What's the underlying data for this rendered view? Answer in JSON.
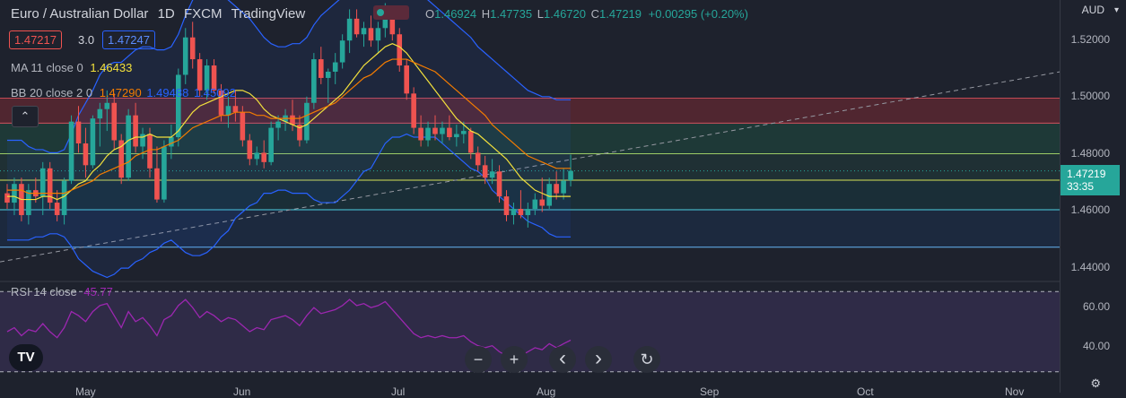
{
  "header": {
    "symbol": "Euro / Australian Dollar",
    "interval": "1D",
    "source": "FXCM",
    "platform": "TradingView",
    "o_label": "O",
    "o_value": "1.46924",
    "h_label": "H",
    "h_value": "1.47735",
    "l_label": "L",
    "l_value": "1.46720",
    "c_label": "C",
    "c_value": "1.47219",
    "change": "+0.00295 (+0.20%)"
  },
  "order": {
    "sell": "1.47217",
    "spread": "3.0",
    "buy": "1.47247"
  },
  "ma": {
    "label": "MA 11 close 0",
    "value": "1.46433"
  },
  "bb": {
    "label": "BB 20 close 2 0",
    "basis": "1.47290",
    "upper": "1.49488",
    "lower": "1.45092"
  },
  "rsi": {
    "label": "RSI 14 close",
    "value": "45.77"
  },
  "axis": {
    "currency": "AUD",
    "price_ticks": [
      "1.52000",
      "1.50000",
      "1.48000",
      "1.46000",
      "1.44000"
    ],
    "rsi_ticks": [
      "60.00",
      "40.00"
    ],
    "months": [
      "May",
      "Jun",
      "Jul",
      "Aug",
      "Sep",
      "Oct",
      "Nov"
    ],
    "price_tag": "1.47219",
    "countdown": "33:35"
  },
  "controls": {
    "zoom_out": "−",
    "zoom_in": "+",
    "prev": "‹",
    "next": "›",
    "reset": "↻"
  },
  "logo": "TV",
  "colors": {
    "up": "#26a69a",
    "down": "#ef5350",
    "ma": "#f2e03c",
    "bb_basis": "#f57c00",
    "bb_band": "#2962ff",
    "rsi": "#9c27b0"
  },
  "chart_data": {
    "type": "candlestick",
    "title": "Euro / Australian Dollar",
    "interval": "1D",
    "x_axis": [
      "May",
      "Jun",
      "Jul",
      "Aug",
      "Sep",
      "Oct",
      "Nov"
    ],
    "y_axis": {
      "label": "AUD",
      "range": [
        1.437,
        1.527
      ],
      "ticks": [
        1.52,
        1.5,
        1.48,
        1.46,
        1.44
      ]
    },
    "candles_ohlc": [
      [
        1.465,
        1.468,
        1.46,
        1.462
      ],
      [
        1.462,
        1.47,
        1.458,
        1.468
      ],
      [
        1.468,
        1.47,
        1.456,
        1.458
      ],
      [
        1.458,
        1.468,
        1.455,
        1.466
      ],
      [
        1.466,
        1.47,
        1.462,
        1.464
      ],
      [
        1.464,
        1.475,
        1.458,
        1.473
      ],
      [
        1.473,
        1.475,
        1.46,
        1.462
      ],
      [
        1.462,
        1.466,
        1.456,
        1.458
      ],
      [
        1.458,
        1.47,
        1.455,
        1.469
      ],
      [
        1.469,
        1.49,
        1.468,
        1.488
      ],
      [
        1.488,
        1.493,
        1.478,
        1.481
      ],
      [
        1.481,
        1.486,
        1.47,
        1.474
      ],
      [
        1.474,
        1.49,
        1.473,
        1.489
      ],
      [
        1.489,
        1.494,
        1.48,
        1.492
      ],
      [
        1.492,
        1.498,
        1.485,
        1.494
      ],
      [
        1.494,
        1.497,
        1.479,
        1.482
      ],
      [
        1.482,
        1.484,
        1.468,
        1.47
      ],
      [
        1.47,
        1.492,
        1.469,
        1.49
      ],
      [
        1.49,
        1.494,
        1.478,
        1.48
      ],
      [
        1.48,
        1.486,
        1.476,
        1.484
      ],
      [
        1.484,
        1.486,
        1.47,
        1.473
      ],
      [
        1.473,
        1.48,
        1.462,
        1.463
      ],
      [
        1.463,
        1.482,
        1.462,
        1.48
      ],
      [
        1.48,
        1.487,
        1.476,
        1.483
      ],
      [
        1.483,
        1.505,
        1.48,
        1.503
      ],
      [
        1.503,
        1.518,
        1.5,
        1.515
      ],
      [
        1.515,
        1.52,
        1.505,
        1.508
      ],
      [
        1.508,
        1.51,
        1.496,
        1.498
      ],
      [
        1.498,
        1.508,
        1.495,
        1.506
      ],
      [
        1.506,
        1.508,
        1.497,
        1.498
      ],
      [
        1.498,
        1.5,
        1.488,
        1.49
      ],
      [
        1.49,
        1.496,
        1.486,
        1.493
      ],
      [
        1.493,
        1.498,
        1.488,
        1.491
      ],
      [
        1.491,
        1.493,
        1.48,
        1.482
      ],
      [
        1.482,
        1.484,
        1.474,
        1.476
      ],
      [
        1.476,
        1.48,
        1.474,
        1.478
      ],
      [
        1.478,
        1.482,
        1.473,
        1.475
      ],
      [
        1.475,
        1.488,
        1.474,
        1.486
      ],
      [
        1.486,
        1.49,
        1.482,
        1.488
      ],
      [
        1.488,
        1.492,
        1.485,
        1.49
      ],
      [
        1.49,
        1.495,
        1.485,
        1.487
      ],
      [
        1.487,
        1.49,
        1.48,
        1.482
      ],
      [
        1.482,
        1.496,
        1.481,
        1.494
      ],
      [
        1.494,
        1.51,
        1.492,
        1.508
      ],
      [
        1.508,
        1.512,
        1.5,
        1.502
      ],
      [
        1.502,
        1.505,
        1.494,
        1.504
      ],
      [
        1.504,
        1.51,
        1.5,
        1.507
      ],
      [
        1.507,
        1.516,
        1.505,
        1.514
      ],
      [
        1.514,
        1.524,
        1.51,
        1.521
      ],
      [
        1.521,
        1.524,
        1.515,
        1.516
      ],
      [
        1.516,
        1.52,
        1.512,
        1.518
      ],
      [
        1.518,
        1.522,
        1.512,
        1.514
      ],
      [
        1.514,
        1.52,
        1.51,
        1.518
      ],
      [
        1.518,
        1.526,
        1.515,
        1.522
      ],
      [
        1.522,
        1.524,
        1.514,
        1.516
      ],
      [
        1.516,
        1.518,
        1.504,
        1.506
      ],
      [
        1.506,
        1.508,
        1.495,
        1.497
      ],
      [
        1.497,
        1.499,
        1.484,
        1.486
      ],
      [
        1.486,
        1.49,
        1.48,
        1.482
      ],
      [
        1.482,
        1.488,
        1.48,
        1.486
      ],
      [
        1.486,
        1.49,
        1.482,
        1.484
      ],
      [
        1.484,
        1.488,
        1.481,
        1.486
      ],
      [
        1.486,
        1.49,
        1.482,
        1.483
      ],
      [
        1.483,
        1.487,
        1.48,
        1.484
      ],
      [
        1.484,
        1.488,
        1.481,
        1.485
      ],
      [
        1.485,
        1.486,
        1.476,
        1.478
      ],
      [
        1.478,
        1.48,
        1.472,
        1.474
      ],
      [
        1.474,
        1.477,
        1.468,
        1.47
      ],
      [
        1.47,
        1.476,
        1.468,
        1.472
      ],
      [
        1.472,
        1.474,
        1.462,
        1.464
      ],
      [
        1.464,
        1.466,
        1.456,
        1.458
      ],
      [
        1.458,
        1.462,
        1.455,
        1.46
      ],
      [
        1.46,
        1.466,
        1.457,
        1.458
      ],
      [
        1.458,
        1.462,
        1.454,
        1.46
      ],
      [
        1.46,
        1.465,
        1.458,
        1.463
      ],
      [
        1.463,
        1.47,
        1.459,
        1.461
      ],
      [
        1.461,
        1.47,
        1.46,
        1.468
      ],
      [
        1.468,
        1.472,
        1.463,
        1.465
      ],
      [
        1.465,
        1.473,
        1.463,
        1.469
      ],
      [
        1.4692,
        1.4774,
        1.4672,
        1.4722
      ]
    ],
    "ma_11": [
      1.464,
      1.464,
      1.463,
      1.463,
      1.463,
      1.464,
      1.464,
      1.463,
      1.464,
      1.466,
      1.468,
      1.469,
      1.472,
      1.474,
      1.477,
      1.479,
      1.48,
      1.482,
      1.483,
      1.483,
      1.484,
      1.483,
      1.483,
      1.483,
      1.485,
      1.488,
      1.491,
      1.493,
      1.494,
      1.495,
      1.496,
      1.497,
      1.498,
      1.498,
      1.497,
      1.495,
      1.492,
      1.49,
      1.489,
      1.488,
      1.487,
      1.486,
      1.487,
      1.489,
      1.491,
      1.493,
      1.495,
      1.497,
      1.5,
      1.503,
      1.506,
      1.508,
      1.51,
      1.512,
      1.513,
      1.512,
      1.51,
      1.507,
      1.504,
      1.501,
      1.498,
      1.495,
      1.492,
      1.489,
      1.487,
      1.485,
      1.484,
      1.482,
      1.48,
      1.478,
      1.476,
      1.473,
      1.47,
      1.468,
      1.466,
      1.465,
      1.464,
      1.464,
      1.464,
      1.464
    ],
    "bb_basis": [
      1.466,
      1.466,
      1.466,
      1.465,
      1.465,
      1.465,
      1.465,
      1.465,
      1.465,
      1.466,
      1.467,
      1.468,
      1.469,
      1.471,
      1.472,
      1.473,
      1.474,
      1.475,
      1.477,
      1.478,
      1.479,
      1.479,
      1.48,
      1.481,
      1.482,
      1.484,
      1.486,
      1.487,
      1.488,
      1.489,
      1.49,
      1.49,
      1.491,
      1.491,
      1.491,
      1.49,
      1.49,
      1.489,
      1.489,
      1.489,
      1.489,
      1.489,
      1.49,
      1.491,
      1.492,
      1.493,
      1.494,
      1.496,
      1.498,
      1.5,
      1.502,
      1.503,
      1.505,
      1.507,
      1.508,
      1.508,
      1.508,
      1.507,
      1.506,
      1.505,
      1.504,
      1.502,
      1.5,
      1.498,
      1.496,
      1.494,
      1.492,
      1.49,
      1.487,
      1.485,
      1.483,
      1.481,
      1.479,
      1.477,
      1.476,
      1.475,
      1.474,
      1.473,
      1.473,
      1.473
    ],
    "bb_upper": [
      1.482,
      1.482,
      1.482,
      1.48,
      1.479,
      1.479,
      1.478,
      1.478,
      1.479,
      1.484,
      1.49,
      1.494,
      1.498,
      1.503,
      1.506,
      1.507,
      1.507,
      1.509,
      1.511,
      1.512,
      1.512,
      1.511,
      1.511,
      1.512,
      1.516,
      1.522,
      1.527,
      1.529,
      1.53,
      1.53,
      1.529,
      1.527,
      1.525,
      1.523,
      1.521,
      1.518,
      1.515,
      1.513,
      1.512,
      1.512,
      1.513,
      1.513,
      1.515,
      1.519,
      1.522,
      1.524,
      1.526,
      1.528,
      1.53,
      1.531,
      1.532,
      1.533,
      1.533,
      1.533,
      1.533,
      1.533,
      1.532,
      1.531,
      1.529,
      1.527,
      1.525,
      1.523,
      1.521,
      1.519,
      1.517,
      1.515,
      1.512,
      1.51,
      1.508,
      1.506,
      1.504,
      1.502,
      1.5,
      1.498,
      1.497,
      1.496,
      1.496,
      1.495,
      1.495,
      1.495
    ],
    "bb_lower": [
      1.45,
      1.45,
      1.45,
      1.45,
      1.451,
      1.451,
      1.452,
      1.452,
      1.451,
      1.448,
      1.444,
      1.442,
      1.44,
      1.439,
      1.438,
      1.439,
      1.441,
      1.441,
      1.443,
      1.444,
      1.446,
      1.447,
      1.449,
      1.45,
      1.448,
      1.446,
      1.445,
      1.445,
      1.446,
      1.448,
      1.451,
      1.453,
      1.457,
      1.459,
      1.461,
      1.462,
      1.465,
      1.465,
      1.466,
      1.466,
      1.465,
      1.465,
      1.465,
      1.463,
      1.462,
      1.462,
      1.462,
      1.464,
      1.466,
      1.469,
      1.472,
      1.473,
      1.477,
      1.481,
      1.483,
      1.483,
      1.484,
      1.483,
      1.483,
      1.483,
      1.483,
      1.481,
      1.479,
      1.477,
      1.475,
      1.473,
      1.472,
      1.47,
      1.466,
      1.464,
      1.462,
      1.46,
      1.458,
      1.456,
      1.455,
      1.454,
      1.452,
      1.451,
      1.451,
      1.451
    ],
    "horizontal_levels": [
      1.4955,
      1.4875,
      1.4777,
      1.4692,
      1.4597,
      1.4477
    ],
    "trendline": {
      "from": [
        "x_start",
        1.443
      ],
      "to": [
        "x_end",
        1.504
      ],
      "style": "dashed"
    },
    "rsi_14": [
      50,
      52,
      48,
      51,
      50,
      54,
      50,
      47,
      52,
      60,
      58,
      55,
      60,
      63,
      64,
      58,
      52,
      60,
      55,
      57,
      53,
      48,
      56,
      58,
      63,
      66,
      62,
      57,
      60,
      58,
      55,
      57,
      56,
      53,
      50,
      52,
      51,
      56,
      57,
      58,
      56,
      53,
      58,
      62,
      59,
      60,
      61,
      63,
      66,
      63,
      64,
      62,
      63,
      65,
      61,
      57,
      53,
      49,
      47,
      48,
      47,
      48,
      47,
      47,
      48,
      45,
      43,
      42,
      43,
      40,
      38,
      39,
      38,
      40,
      42,
      41,
      44,
      42,
      44,
      45.77
    ],
    "rsi_range": [
      25,
      75
    ],
    "rsi_levels": [
      70,
      30
    ]
  }
}
